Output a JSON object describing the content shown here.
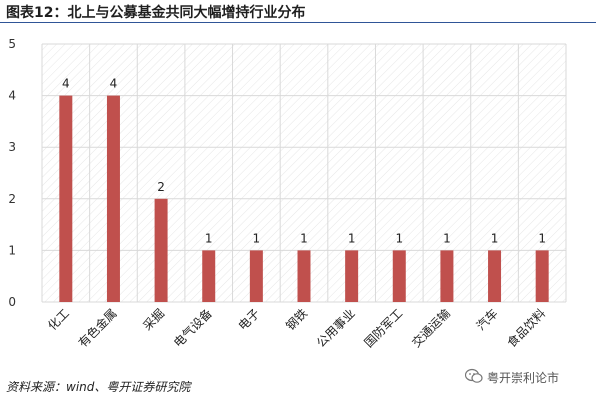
{
  "header": {
    "title": "图表12：北上与公募基金共同大幅增持行业分布"
  },
  "chart_data": {
    "type": "bar",
    "categories": [
      "化工",
      "有色金属",
      "采掘",
      "电气设备",
      "电子",
      "钢铁",
      "公用事业",
      "国防军工",
      "交通运输",
      "汽车",
      "食品饮料"
    ],
    "values": [
      4,
      4,
      2,
      1,
      1,
      1,
      1,
      1,
      1,
      1,
      1
    ],
    "ylim": [
      0,
      5
    ],
    "yticks": [
      0,
      1,
      2,
      3,
      4,
      5
    ],
    "grid": true,
    "title": "",
    "xlabel": "",
    "ylabel": "",
    "bar_color": "#c0504d",
    "grid_color": "#d9d9d9"
  },
  "footer": {
    "source": "资料来源：wind、粤开证券研究院"
  },
  "watermark": {
    "text": "粤开崇利论市"
  }
}
